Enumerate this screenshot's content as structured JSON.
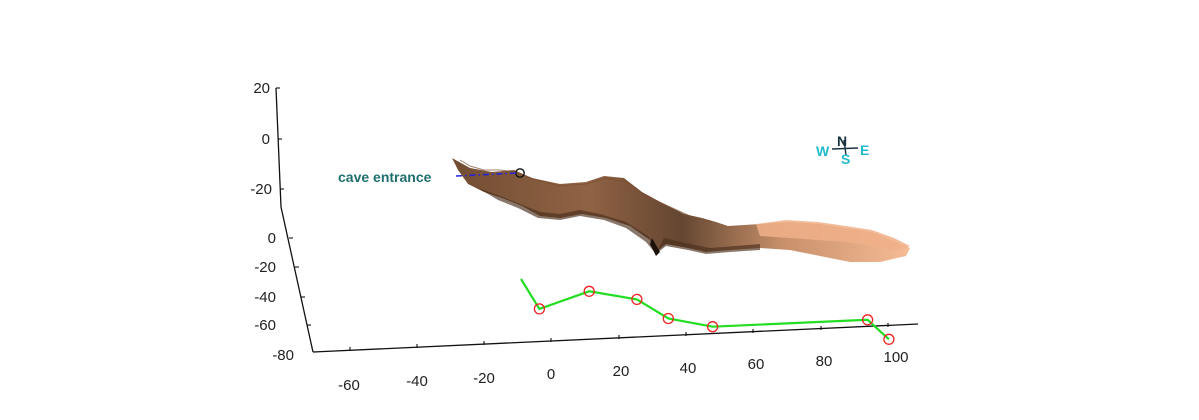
{
  "chart_data": {
    "type": "line",
    "title": "",
    "xlabel": "",
    "ylabel": "",
    "zlabel": "",
    "grid": false,
    "x_ticks": [
      "-60",
      "-40",
      "-20",
      "0",
      "20",
      "40",
      "60",
      "80",
      "100"
    ],
    "y_ticks": [
      "0",
      "-20",
      "-40",
      "-60",
      "-80"
    ],
    "z_ticks": [
      "20",
      "0",
      "-20"
    ],
    "series": [
      {
        "style": "cave-passage-surface",
        "color_dark": "#5a3a22",
        "color_light": "#f5b890"
      },
      {
        "style": "centerline-survey",
        "color": "#22dd22",
        "marker_color": "#ee2222",
        "points": [
          {
            "x": -10,
            "y": -4,
            "z": -14
          },
          {
            "x": -5,
            "y": -4,
            "z": -26
          },
          {
            "x": 10,
            "y": -4,
            "z": -20
          },
          {
            "x": 24,
            "y": -4,
            "z": -24
          },
          {
            "x": 33,
            "y": -4,
            "z": -32
          },
          {
            "x": 46,
            "y": -4,
            "z": -36
          },
          {
            "x": 92,
            "y": -4,
            "z": -36
          },
          {
            "x": 98,
            "y": -4,
            "z": -44
          }
        ]
      }
    ],
    "annotations": [
      {
        "text": "cave entrance",
        "color": "#1f6f6f",
        "leader_color": "#2222dd"
      }
    ],
    "compass": {
      "north": "N",
      "south": "S",
      "east": "E",
      "west": "W",
      "color": "#22bbcc",
      "north_color": "#1a3340"
    }
  }
}
